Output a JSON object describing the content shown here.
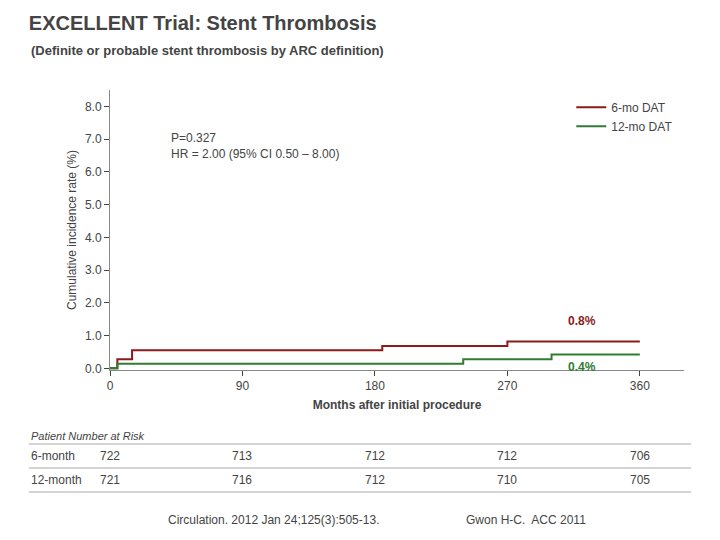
{
  "chart_data": {
    "type": "step",
    "title": "EXCELLENT Trial: Stent Thrombosis",
    "subtitle": "(Definite or probable stent thrombosis by ARC definition)",
    "xlabel": "Months after initial procedure",
    "ylabel": "Cumulative incidence rate (%)",
    "xlim": [
      0,
      390
    ],
    "ylim": [
      -0.05,
      8.5
    ],
    "xticks": [
      0,
      90,
      180,
      270,
      360
    ],
    "yticks": [
      {
        "value": 0.0,
        "label": "0.0"
      },
      {
        "value": 1.0,
        "label": "1.0"
      },
      {
        "value": 2.0,
        "label": "2.0"
      },
      {
        "value": 3.0,
        "label": "3.0"
      },
      {
        "value": 4.0,
        "label": "4.0"
      },
      {
        "value": 5.0,
        "label": "5.0"
      },
      {
        "value": 6.0,
        "label": "6.0"
      },
      {
        "value": 7.0,
        "label": "7.0"
      },
      {
        "value": 8.0,
        "label": "8.0"
      }
    ],
    "grid": false,
    "legend": "upper right",
    "series": [
      {
        "name": "6-mo DAT",
        "color": "#8b1a1a",
        "x": [
          0,
          5,
          5,
          15,
          15,
          45,
          45,
          90,
          90,
          135,
          135,
          165,
          165,
          185,
          185,
          240,
          240,
          270,
          270,
          360
        ],
        "values": [
          0.0,
          0.0,
          0.28,
          0.28,
          0.55,
          0.55,
          0.55,
          0.55,
          0.55,
          0.55,
          0.55,
          0.55,
          0.55,
          0.68,
          0.68,
          0.68,
          0.68,
          0.82,
          0.82,
          0.82
        ]
      },
      {
        "name": "12-mo DAT",
        "color": "#2e7d32",
        "x": [
          0,
          5,
          5,
          30,
          30,
          240,
          240,
          300,
          300,
          360
        ],
        "values": [
          0.0,
          0.0,
          0.14,
          0.14,
          0.14,
          0.14,
          0.28,
          0.28,
          0.42,
          0.42
        ]
      }
    ],
    "annotations": [
      {
        "x": 310,
        "y": 1.45,
        "text": "0.8%",
        "color": "#8b1a1a"
      },
      {
        "x": 310,
        "y": 0.05,
        "text": "0.4%",
        "color": "#2e7d32"
      }
    ],
    "stats": {
      "x": 40,
      "y": 7.3,
      "text": "P=0.327\nHR = 2.00 (95% CI 0.50 – 8.00)"
    },
    "risk_table": {
      "header": "Patient Number at Risk",
      "x": [
        0,
        90,
        180,
        270,
        360
      ],
      "rows": [
        {
          "label": "6-month",
          "values": [
            722,
            713,
            712,
            712,
            706
          ]
        },
        {
          "label": "12-month",
          "values": [
            721,
            716,
            712,
            710,
            705
          ]
        }
      ]
    },
    "citation": "Circulation. 2012 Jan 24;125(3):505-13.",
    "author": "Gwon H-C.  ACC 2011"
  }
}
